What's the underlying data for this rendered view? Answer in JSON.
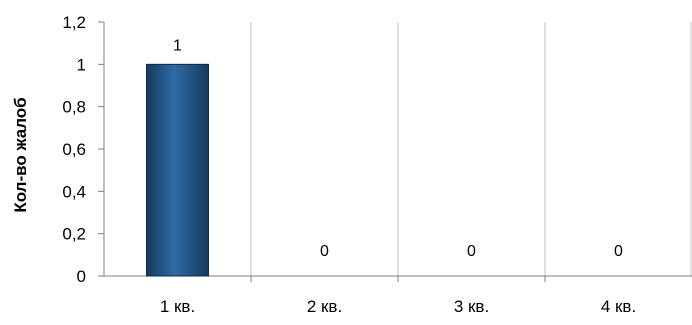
{
  "chart_data": {
    "type": "bar",
    "title": "",
    "xlabel": "",
    "ylabel": "Кол-во жалоб",
    "categories": [
      "1 кв.",
      "2 кв.",
      "3 кв.",
      "4 кв."
    ],
    "values": [
      1,
      0,
      0,
      0
    ],
    "data_labels": [
      "1",
      "0",
      "0",
      "0"
    ],
    "ylim": [
      0,
      1.2
    ],
    "y_ticks": [
      "0",
      "0,2",
      "0,4",
      "0,6",
      "0,8",
      "1",
      "1,2"
    ],
    "grid": "vertical",
    "legend": "none",
    "colors": {
      "bar_fill": "#1f4e79",
      "bar_highlight": "#2e6aa6",
      "grid": "#bfbfbf",
      "axis": "#7f7f7f"
    }
  }
}
